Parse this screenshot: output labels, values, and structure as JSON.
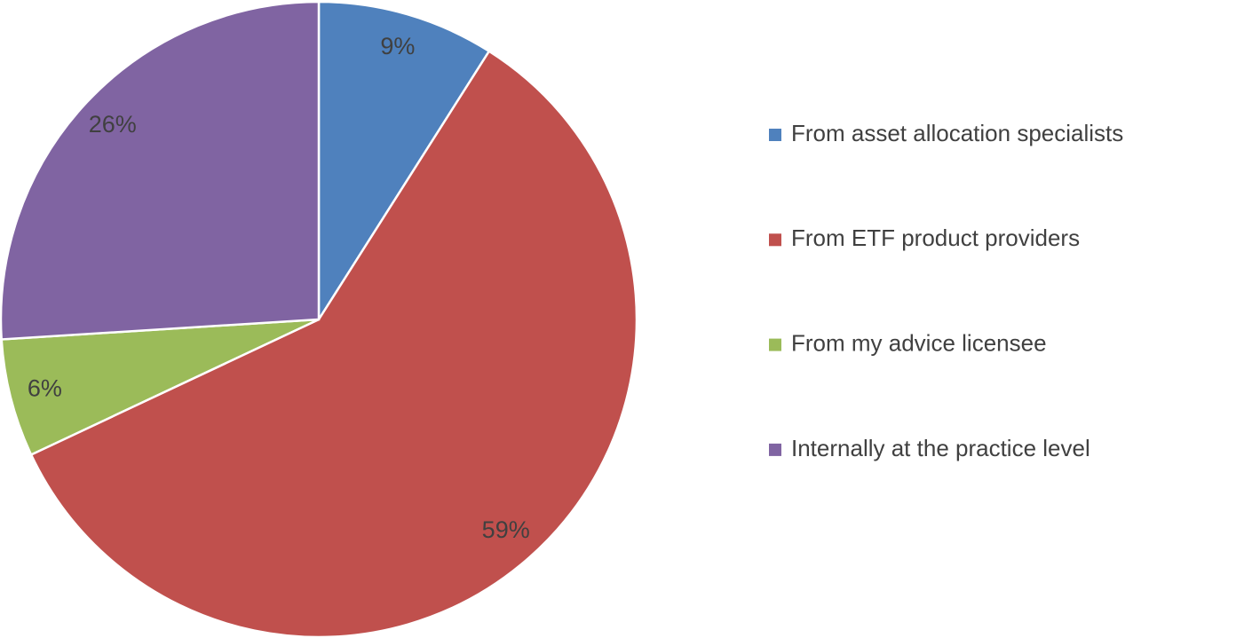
{
  "chart_data": {
    "type": "pie",
    "categories": [
      "From asset allocation specialists",
      "From ETF product providers",
      "From my advice licensee",
      "Internally at the practice level"
    ],
    "values": [
      9,
      59,
      6,
      26
    ],
    "value_labels": [
      "9%",
      "59%",
      "6%",
      "26%"
    ],
    "colors": [
      "#4f81bd",
      "#c0504d",
      "#9bbb59",
      "#8064a2"
    ],
    "legend": "right"
  }
}
